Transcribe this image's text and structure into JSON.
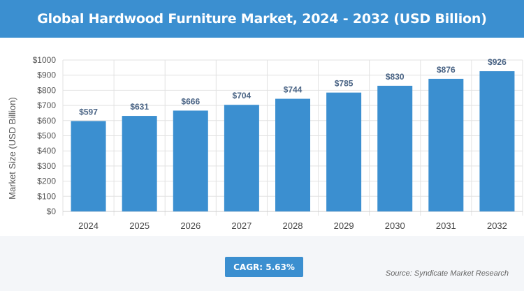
{
  "header": {
    "title": "Global Hardwood Furniture Market, 2024 - 2032 (USD Billion)"
  },
  "chart_data": {
    "type": "bar",
    "title": "Global Hardwood Furniture Market, 2024 - 2032 (USD Billion)",
    "categories": [
      "2024",
      "2025",
      "2026",
      "2027",
      "2028",
      "2029",
      "2030",
      "2031",
      "2032"
    ],
    "values": [
      597,
      631,
      666,
      704,
      744,
      785,
      830,
      876,
      926
    ],
    "data_labels": [
      "$597",
      "$631",
      "$666",
      "$704",
      "$744",
      "$785",
      "$830",
      "$876",
      "$926"
    ],
    "xlabel": "",
    "ylabel": "Market Size (USD Billion)",
    "ylim": [
      0,
      1000
    ],
    "yticks": [
      0,
      100,
      200,
      300,
      400,
      500,
      600,
      700,
      800,
      900,
      1000
    ],
    "ytick_labels": [
      "$0",
      "$100",
      "$200",
      "$300",
      "$400",
      "$500",
      "$600",
      "$700",
      "$800",
      "$900",
      "$1000"
    ],
    "grid": true,
    "bar_color": "#3b8fd0"
  },
  "footer": {
    "cagr_label": "CAGR: 5.63%",
    "source": "Source: Syndicate Market Research"
  },
  "colors": {
    "accent": "#3b8fd0",
    "data_label": "#4a6485",
    "axis_text": "#555555"
  }
}
